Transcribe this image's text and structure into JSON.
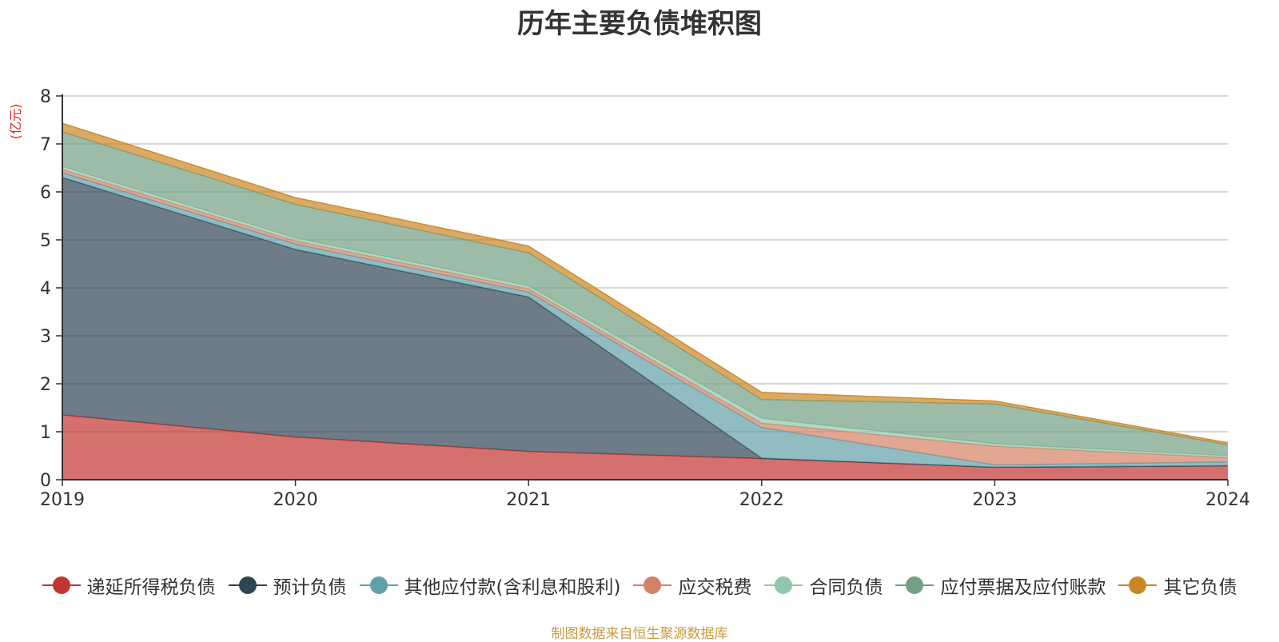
{
  "title": "历年主要负债堆积图",
  "source_note": "制图数据来自恒生聚源数据库",
  "chart_data": {
    "type": "area",
    "stacked": true,
    "title": "历年主要负债堆积图",
    "ylabel": "(亿元)",
    "xlabel": "",
    "categories": [
      "2019",
      "2020",
      "2021",
      "2022",
      "2023",
      "2024"
    ],
    "ylim": [
      0,
      8
    ],
    "yticks": [
      0,
      1,
      2,
      3,
      4,
      5,
      6,
      7,
      8
    ],
    "grid": true,
    "legend_position": "bottom",
    "series": [
      {
        "name": "递延所得税负债",
        "color": "#c23531",
        "values": [
          1.35,
          0.89,
          0.59,
          0.44,
          0.26,
          0.29
        ]
      },
      {
        "name": "预计负债",
        "color": "#2f4554",
        "values": [
          4.95,
          3.91,
          3.22,
          0.01,
          0.0,
          0.0
        ]
      },
      {
        "name": "其他应付款(含利息和股利)",
        "color": "#61a0a8",
        "values": [
          0.1,
          0.11,
          0.1,
          0.64,
          0.05,
          0.08
        ]
      },
      {
        "name": "应交税费",
        "color": "#d48265",
        "values": [
          0.07,
          0.07,
          0.07,
          0.09,
          0.39,
          0.09
        ]
      },
      {
        "name": "合同负债",
        "color": "#91c7ae",
        "values": [
          0.06,
          0.06,
          0.06,
          0.1,
          0.05,
          0.04
        ]
      },
      {
        "name": "应付票据及应付账款",
        "color": "#749f83",
        "values": [
          0.72,
          0.7,
          0.69,
          0.39,
          0.83,
          0.23
        ]
      },
      {
        "name": "其它负债",
        "color": "#ca8622",
        "values": [
          0.18,
          0.14,
          0.14,
          0.15,
          0.06,
          0.04
        ]
      }
    ]
  }
}
